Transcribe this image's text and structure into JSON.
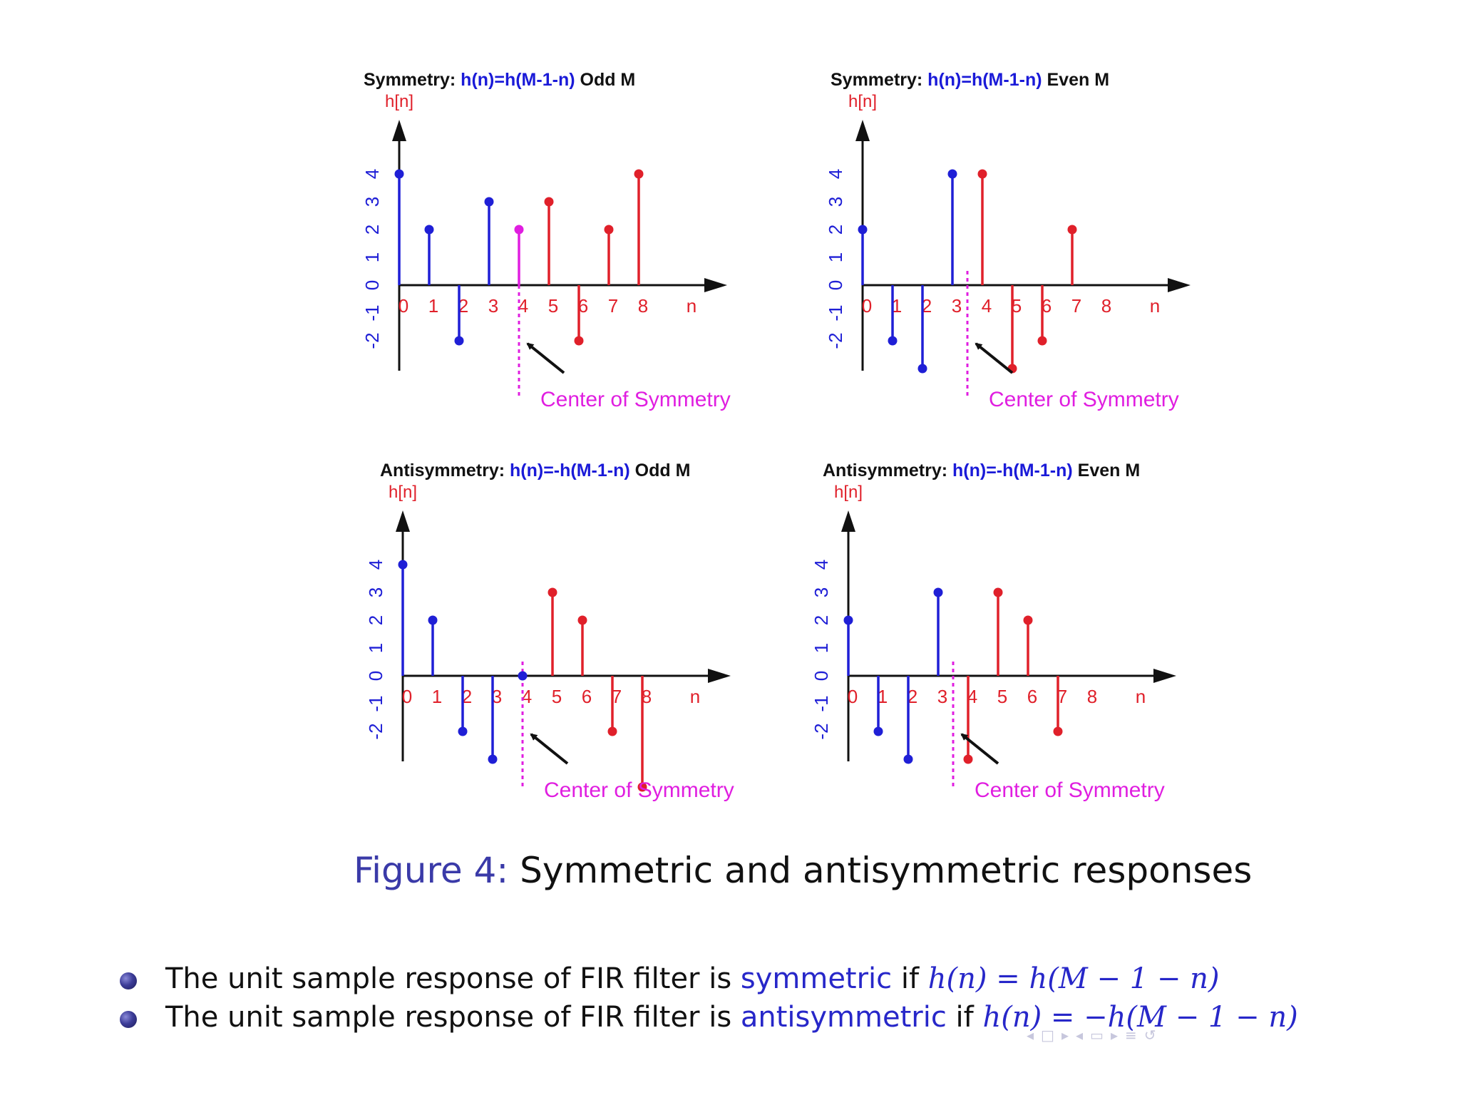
{
  "figure": {
    "caption_label": "Figure 4:",
    "caption_text": "Symmetric and antisymmetric responses"
  },
  "panels": [
    {
      "title_pre": "Symmetry: ",
      "title_eq": "h(n)=h(M-1-n)",
      "title_post": " Odd M",
      "ylabel": "h[n]",
      "xlabel": "n",
      "center_label": "Center of Symmetry"
    },
    {
      "title_pre": "Symmetry: ",
      "title_eq": "h(n)=h(M-1-n)",
      "title_post": " Even M",
      "ylabel": "h[n]",
      "xlabel": "n",
      "center_label": "Center of Symmetry"
    },
    {
      "title_pre": "Antisymmetry: ",
      "title_eq": "h(n)=-h(M-1-n)",
      "title_post": " Odd M",
      "ylabel": "h[n]",
      "xlabel": "n",
      "center_label": "Center of Symmetry"
    },
    {
      "title_pre": "Antisymmetry: ",
      "title_eq": "h(n)=-h(M-1-n)",
      "title_post": " Even M",
      "ylabel": "h[n]",
      "xlabel": "n",
      "center_label": "Center of Symmetry"
    }
  ],
  "chart_data": [
    {
      "type": "stem",
      "title": "Symmetry: h(n)=h(M-1-n) Odd M",
      "xlabel": "n",
      "ylabel": "h[n]",
      "x_ticks": [
        "0",
        "1",
        "2",
        "3",
        "4",
        "5",
        "6",
        "7",
        "8"
      ],
      "y_ticks": [
        "-2",
        "-1",
        "0",
        "1",
        "2",
        "3",
        "4"
      ],
      "ylim": [
        -3,
        6
      ],
      "center_of_symmetry": 4,
      "center_label": "Center of Symmetry",
      "series": [
        {
          "color": "#1f1fd6",
          "x": [
            0,
            1,
            2,
            3
          ],
          "values": [
            4,
            2,
            -2,
            3
          ]
        },
        {
          "color": "#e01ee0",
          "x": [
            4
          ],
          "values": [
            2
          ]
        },
        {
          "color": "#e0202a",
          "x": [
            5,
            6,
            7,
            8
          ],
          "values": [
            3,
            -2,
            2,
            4
          ]
        }
      ]
    },
    {
      "type": "stem",
      "title": "Symmetry: h(n)=h(M-1-n) Even M",
      "xlabel": "n",
      "ylabel": "h[n]",
      "x_ticks": [
        "0",
        "1",
        "2",
        "3",
        "4",
        "5",
        "6",
        "7",
        "8"
      ],
      "y_ticks": [
        "-2",
        "-1",
        "0",
        "1",
        "2",
        "3",
        "4"
      ],
      "ylim": [
        -3,
        6
      ],
      "center_of_symmetry": 3.5,
      "center_label": "Center of Symmetry",
      "series": [
        {
          "color": "#1f1fd6",
          "x": [
            0,
            1,
            2,
            3
          ],
          "values": [
            2,
            -2,
            -3,
            4
          ]
        },
        {
          "color": "#e0202a",
          "x": [
            4,
            5,
            6,
            7
          ],
          "values": [
            4,
            -3,
            -2,
            2
          ]
        }
      ]
    },
    {
      "type": "stem",
      "title": "Antisymmetry: h(n)=-h(M-1-n) Odd M",
      "xlabel": "n",
      "ylabel": "h[n]",
      "x_ticks": [
        "0",
        "1",
        "2",
        "3",
        "4",
        "5",
        "6",
        "7",
        "8"
      ],
      "y_ticks": [
        "-2",
        "-1",
        "0",
        "1",
        "2",
        "3",
        "4"
      ],
      "ylim": [
        -3,
        6
      ],
      "center_of_symmetry": 4,
      "center_label": "Center of Symmetry",
      "series": [
        {
          "color": "#1f1fd6",
          "x": [
            0,
            1,
            2,
            3,
            4
          ],
          "values": [
            4,
            2,
            -2,
            -3,
            0
          ]
        },
        {
          "color": "#e0202a",
          "x": [
            5,
            6,
            7,
            8
          ],
          "values": [
            3,
            2,
            -2,
            -4
          ]
        }
      ]
    },
    {
      "type": "stem",
      "title": "Antisymmetry: h(n)=-h(M-1-n) Even M",
      "xlabel": "n",
      "ylabel": "h[n]",
      "x_ticks": [
        "0",
        "1",
        "2",
        "3",
        "4",
        "5",
        "6",
        "7",
        "8"
      ],
      "y_ticks": [
        "-2",
        "-1",
        "0",
        "1",
        "2",
        "3",
        "4"
      ],
      "ylim": [
        -3,
        6
      ],
      "center_of_symmetry": 3.5,
      "center_label": "Center of Symmetry",
      "series": [
        {
          "color": "#1f1fd6",
          "x": [
            0,
            1,
            2,
            3
          ],
          "values": [
            2,
            -2,
            -3,
            3
          ]
        },
        {
          "color": "#e0202a",
          "x": [
            4,
            5,
            6,
            7
          ],
          "values": [
            -3,
            3,
            2,
            -2
          ]
        }
      ]
    }
  ],
  "bullets": [
    {
      "text": "The unit sample response of FIR filter is ",
      "keyword": "symmetric",
      "connector": " if ",
      "equation": "h(n) = h(M − 1 − n)"
    },
    {
      "text": "The unit sample response of FIR filter is ",
      "keyword": "antisymmetric",
      "connector": " if ",
      "equation": "h(n) = −h(M − 1 − n)"
    }
  ],
  "colors": {
    "blue": "#1f1fd6",
    "red": "#e0202a",
    "magenta": "#e01ee0",
    "axis": "#111111"
  }
}
